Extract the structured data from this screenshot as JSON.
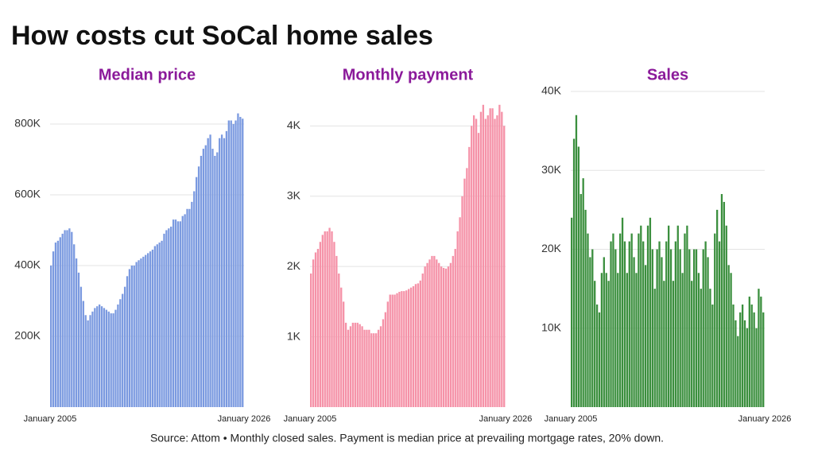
{
  "title": "How costs cut SoCal home sales",
  "note": "Source: Attom • Monthly closed sales. Payment is median price at prevailing mortgage rates, 20% down.",
  "chart_data": [
    {
      "type": "bar",
      "title": "Median price",
      "color": "#7b9ae0",
      "grid": true,
      "xlim": [
        2005,
        2026
      ],
      "xticks": [
        {
          "value": 2005,
          "label": "January 2005"
        },
        {
          "value": 2026,
          "label": "January 2026"
        }
      ],
      "ylim": [
        0,
        892000
      ],
      "yticks": [
        {
          "value": 200000,
          "label": "200K"
        },
        {
          "value": 400000,
          "label": "400K"
        },
        {
          "value": 600000,
          "label": "600K"
        },
        {
          "value": 800000,
          "label": "800K"
        }
      ],
      "x": [
        2005,
        2005.25,
        2005.5,
        2005.75,
        2006,
        2006.25,
        2006.5,
        2006.75,
        2007,
        2007.25,
        2007.5,
        2007.75,
        2008,
        2008.25,
        2008.5,
        2008.75,
        2009,
        2009.25,
        2009.5,
        2009.75,
        2010,
        2010.25,
        2010.5,
        2010.75,
        2011,
        2011.25,
        2011.5,
        2011.75,
        2012,
        2012.25,
        2012.5,
        2012.75,
        2013,
        2013.25,
        2013.5,
        2013.75,
        2014,
        2014.25,
        2014.5,
        2014.75,
        2015,
        2015.25,
        2015.5,
        2015.75,
        2016,
        2016.25,
        2016.5,
        2016.75,
        2017,
        2017.25,
        2017.5,
        2017.75,
        2018,
        2018.25,
        2018.5,
        2018.75,
        2019,
        2019.25,
        2019.5,
        2019.75,
        2020,
        2020.25,
        2020.5,
        2020.75,
        2021,
        2021.25,
        2021.5,
        2021.75,
        2022,
        2022.25,
        2022.5,
        2022.75,
        2023,
        2023.25,
        2023.5,
        2023.75,
        2024,
        2024.25,
        2024.5,
        2024.75,
        2025,
        2025.25,
        2025.5,
        2025.75
      ],
      "values": [
        400000,
        440000,
        465000,
        470000,
        480000,
        490000,
        500000,
        500000,
        505000,
        495000,
        460000,
        420000,
        380000,
        340000,
        300000,
        260000,
        245000,
        260000,
        270000,
        280000,
        285000,
        290000,
        285000,
        280000,
        275000,
        270000,
        265000,
        265000,
        275000,
        290000,
        305000,
        320000,
        340000,
        370000,
        390000,
        400000,
        400000,
        410000,
        415000,
        420000,
        425000,
        430000,
        435000,
        440000,
        445000,
        455000,
        460000,
        465000,
        470000,
        490000,
        500000,
        505000,
        510000,
        530000,
        530000,
        525000,
        525000,
        540000,
        545000,
        560000,
        560000,
        580000,
        610000,
        650000,
        680000,
        710000,
        730000,
        740000,
        760000,
        770000,
        730000,
        710000,
        720000,
        760000,
        770000,
        760000,
        780000,
        810000,
        810000,
        800000,
        810000,
        830000,
        820000,
        815000
      ]
    },
    {
      "type": "bar",
      "title": "Monthly payment",
      "color": "#f592a8",
      "grid": true,
      "xlim": [
        2005,
        2026
      ],
      "xticks": [
        {
          "value": 2005,
          "label": "January 2005"
        },
        {
          "value": 2026,
          "label": "January 2026"
        }
      ],
      "ylim": [
        0,
        4490
      ],
      "yticks": [
        {
          "value": 1000,
          "label": "1K"
        },
        {
          "value": 2000,
          "label": "2K"
        },
        {
          "value": 3000,
          "label": "3K"
        },
        {
          "value": 4000,
          "label": "4K"
        }
      ],
      "x": [
        2005,
        2005.25,
        2005.5,
        2005.75,
        2006,
        2006.25,
        2006.5,
        2006.75,
        2007,
        2007.25,
        2007.5,
        2007.75,
        2008,
        2008.25,
        2008.5,
        2008.75,
        2009,
        2009.25,
        2009.5,
        2009.75,
        2010,
        2010.25,
        2010.5,
        2010.75,
        2011,
        2011.25,
        2011.5,
        2011.75,
        2012,
        2012.25,
        2012.5,
        2012.75,
        2013,
        2013.25,
        2013.5,
        2013.75,
        2014,
        2014.25,
        2014.5,
        2014.75,
        2015,
        2015.25,
        2015.5,
        2015.75,
        2016,
        2016.25,
        2016.5,
        2016.75,
        2017,
        2017.25,
        2017.5,
        2017.75,
        2018,
        2018.25,
        2018.5,
        2018.75,
        2019,
        2019.25,
        2019.5,
        2019.75,
        2020,
        2020.25,
        2020.5,
        2020.75,
        2021,
        2021.25,
        2021.5,
        2021.75,
        2022,
        2022.25,
        2022.5,
        2022.75,
        2023,
        2023.25,
        2023.5,
        2023.75,
        2024,
        2024.25,
        2024.5,
        2024.75,
        2025,
        2025.25,
        2025.5,
        2025.75
      ],
      "values": [
        1900,
        2100,
        2200,
        2250,
        2350,
        2450,
        2500,
        2500,
        2550,
        2500,
        2350,
        2150,
        1900,
        1700,
        1500,
        1200,
        1100,
        1150,
        1200,
        1200,
        1200,
        1180,
        1150,
        1100,
        1100,
        1100,
        1050,
        1050,
        1050,
        1100,
        1150,
        1250,
        1350,
        1500,
        1600,
        1600,
        1600,
        1620,
        1640,
        1650,
        1650,
        1660,
        1680,
        1700,
        1720,
        1750,
        1760,
        1800,
        1900,
        2000,
        2050,
        2100,
        2150,
        2150,
        2100,
        2050,
        2000,
        1980,
        1970,
        2000,
        2050,
        2150,
        2250,
        2500,
        2700,
        3000,
        3250,
        3400,
        3700,
        4000,
        4150,
        4100,
        3900,
        4200,
        4300,
        4100,
        4150,
        4250,
        4250,
        4100,
        4150,
        4300,
        4200,
        4000
      ]
    },
    {
      "type": "bar",
      "title": "Sales",
      "color": "#3b8f3e",
      "grid": true,
      "xlim": [
        2005,
        2026
      ],
      "xticks": [
        {
          "value": 2005,
          "label": "January 2005"
        },
        {
          "value": 2026,
          "label": "January 2026"
        }
      ],
      "ylim": [
        0,
        40000
      ],
      "yticks": [
        {
          "value": 10000,
          "label": "10K"
        },
        {
          "value": 20000,
          "label": "20K"
        },
        {
          "value": 30000,
          "label": "30K"
        },
        {
          "value": 40000,
          "label": "40K"
        }
      ],
      "x": [
        2005,
        2005.25,
        2005.5,
        2005.75,
        2006,
        2006.25,
        2006.5,
        2006.75,
        2007,
        2007.25,
        2007.5,
        2007.75,
        2008,
        2008.25,
        2008.5,
        2008.75,
        2009,
        2009.25,
        2009.5,
        2009.75,
        2010,
        2010.25,
        2010.5,
        2010.75,
        2011,
        2011.25,
        2011.5,
        2011.75,
        2012,
        2012.25,
        2012.5,
        2012.75,
        2013,
        2013.25,
        2013.5,
        2013.75,
        2014,
        2014.25,
        2014.5,
        2014.75,
        2015,
        2015.25,
        2015.5,
        2015.75,
        2016,
        2016.25,
        2016.5,
        2016.75,
        2017,
        2017.25,
        2017.5,
        2017.75,
        2018,
        2018.25,
        2018.5,
        2018.75,
        2019,
        2019.25,
        2019.5,
        2019.75,
        2020,
        2020.25,
        2020.5,
        2020.75,
        2021,
        2021.25,
        2021.5,
        2021.75,
        2022,
        2022.25,
        2022.5,
        2022.75,
        2023,
        2023.25,
        2023.5,
        2023.75,
        2024,
        2024.25,
        2024.5,
        2024.75,
        2025,
        2025.25,
        2025.5,
        2025.75
      ],
      "values": [
        24000,
        34000,
        37000,
        33000,
        27000,
        29000,
        25000,
        22000,
        19000,
        20000,
        16000,
        13000,
        12000,
        17000,
        19000,
        17000,
        16000,
        21000,
        22000,
        20000,
        17000,
        22000,
        24000,
        21000,
        17000,
        21000,
        22000,
        19000,
        17000,
        22000,
        23000,
        21000,
        18000,
        23000,
        24000,
        20000,
        15000,
        20000,
        21000,
        19000,
        16000,
        21000,
        23000,
        20000,
        16000,
        21000,
        23000,
        20000,
        17000,
        22000,
        23000,
        20000,
        16000,
        20000,
        20000,
        17000,
        15000,
        20000,
        21000,
        19000,
        15000,
        13000,
        22000,
        25000,
        21000,
        27000,
        26000,
        23000,
        18000,
        17000,
        13000,
        11000,
        9000,
        12000,
        13000,
        11000,
        10000,
        14000,
        13000,
        12000,
        10000,
        15000,
        14000,
        12000
      ]
    }
  ]
}
